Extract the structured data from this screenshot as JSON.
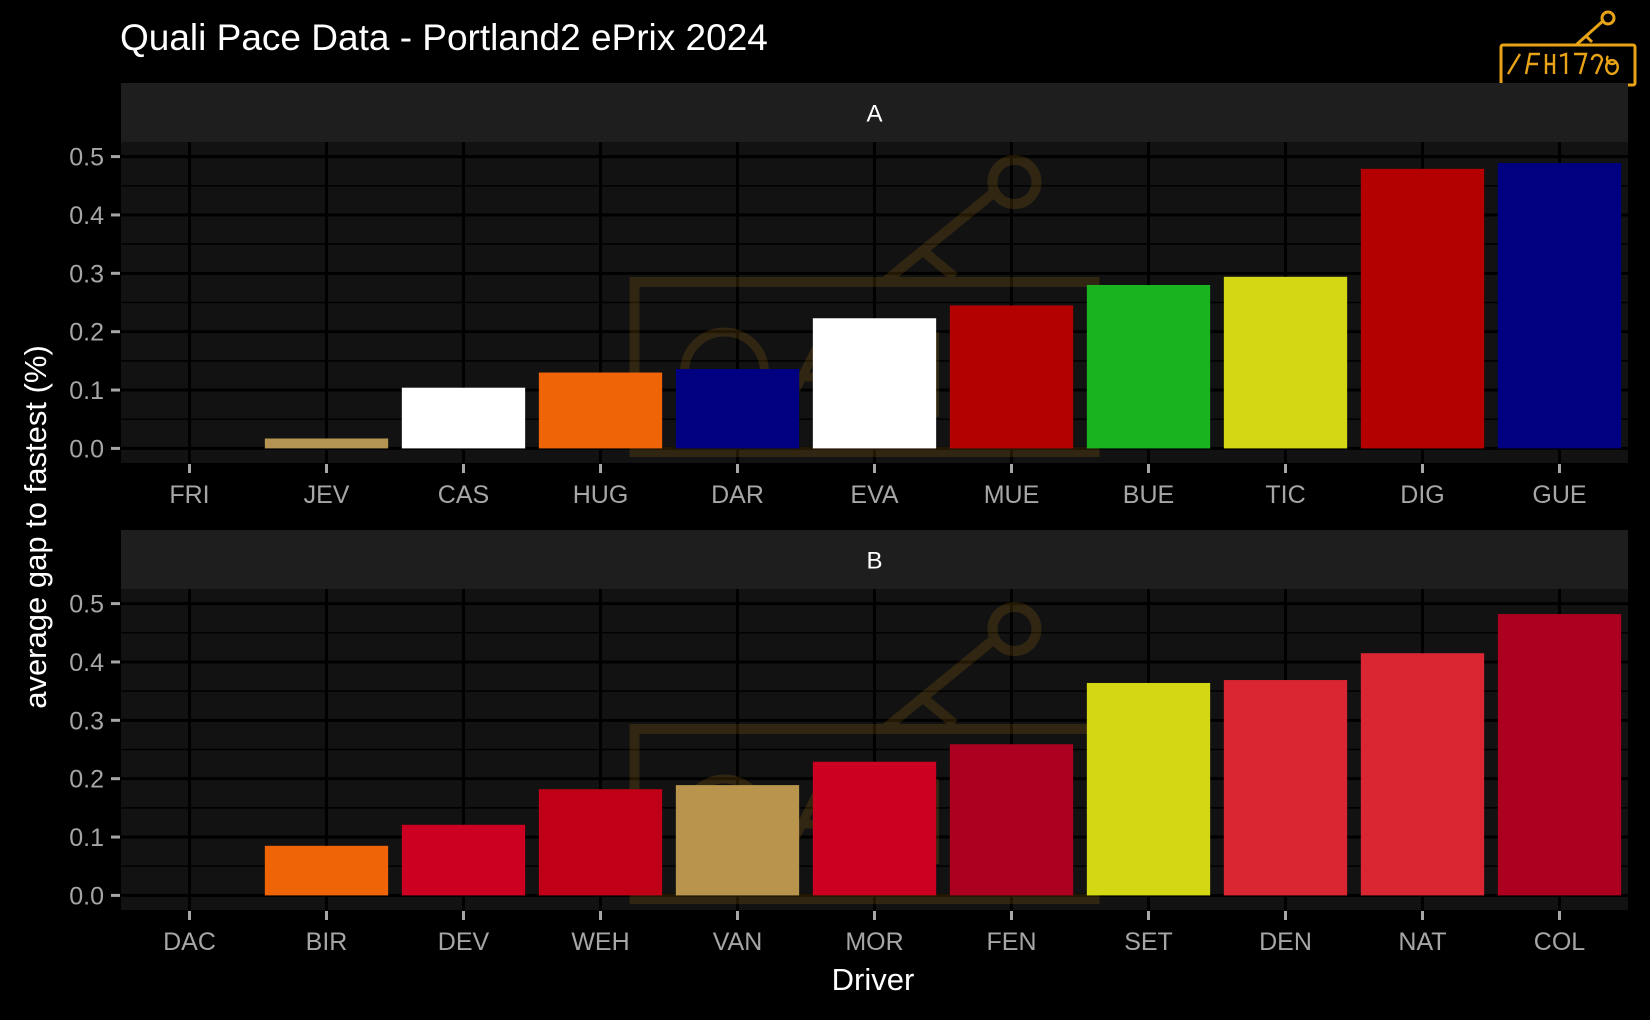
{
  "chart_data": {
    "type": "bar",
    "title": "Quali Pace Data - Portland2 ePrix 2024",
    "xlabel": "Driver",
    "ylabel": "average gap to fastest (%)",
    "ylim": [
      -0.025,
      0.525
    ],
    "yticks": [
      "0.0",
      "0.1",
      "0.2",
      "0.3",
      "0.4",
      "0.5"
    ],
    "grid": true,
    "background": "#000000",
    "panel_background": "#121212",
    "strip_background": "#1e1e1e",
    "watermark_color": "#e8a317",
    "watermark_icon": "key-logo",
    "panels": [
      {
        "strip": "A",
        "categories": [
          "FRI",
          "JEV",
          "CAS",
          "HUG",
          "DAR",
          "EVA",
          "MUE",
          "BUE",
          "TIC",
          "DIG",
          "GUE"
        ],
        "values": [
          0.0,
          0.017,
          0.104,
          0.13,
          0.136,
          0.223,
          0.245,
          0.28,
          0.294,
          0.479,
          0.489
        ],
        "colors": [
          "#b3b3b3",
          "#b39453",
          "#ffffff",
          "#f06408",
          "#000080",
          "#ffffff",
          "#b30000",
          "#18b31f",
          "#d4d714",
          "#b30000",
          "#000080"
        ]
      },
      {
        "strip": "B",
        "categories": [
          "DAC",
          "BIR",
          "DEV",
          "WEH",
          "VAN",
          "MOR",
          "FEN",
          "SET",
          "DEN",
          "NAT",
          "COL"
        ],
        "values": [
          0.0,
          0.085,
          0.121,
          0.182,
          0.189,
          0.229,
          0.259,
          0.364,
          0.369,
          0.415,
          0.482
        ],
        "colors": [
          "#b3b3b3",
          "#f06408",
          "#cc0021",
          "#bf0016",
          "#b8944d",
          "#cc0021",
          "#ad0020",
          "#d4d714",
          "#d92632",
          "#d92632",
          "#ad0020"
        ]
      }
    ]
  }
}
